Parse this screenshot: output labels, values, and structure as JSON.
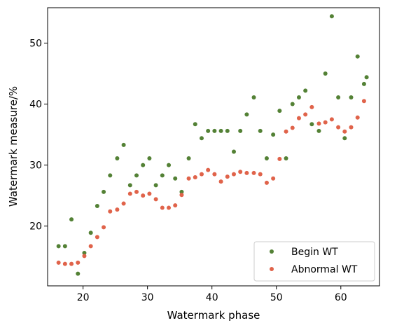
{
  "chart_data": {
    "type": "scatter",
    "xlabel": "Watermark phase",
    "ylabel": "Watermark measure/%",
    "xlim": [
      14.5,
      66
    ],
    "ylim": [
      10.2,
      55.8
    ],
    "xticks": [
      20,
      30,
      40,
      50,
      60
    ],
    "yticks": [
      20,
      30,
      40,
      50
    ],
    "grid": false,
    "legend_position": "lower-right",
    "series": [
      {
        "name": "Begin WT",
        "color": "#538135",
        "points": [
          [
            16.2,
            16.7
          ],
          [
            17.2,
            16.7
          ],
          [
            18.2,
            21.1
          ],
          [
            19.2,
            12.2
          ],
          [
            20.2,
            15.6
          ],
          [
            21.2,
            18.9
          ],
          [
            22.2,
            23.3
          ],
          [
            23.2,
            25.6
          ],
          [
            24.2,
            28.3
          ],
          [
            25.3,
            31.1
          ],
          [
            26.3,
            33.3
          ],
          [
            27.3,
            26.7
          ],
          [
            28.3,
            28.3
          ],
          [
            29.3,
            30.0
          ],
          [
            30.3,
            31.1
          ],
          [
            31.3,
            26.7
          ],
          [
            32.3,
            28.3
          ],
          [
            33.3,
            30.0
          ],
          [
            34.3,
            27.8
          ],
          [
            35.3,
            25.6
          ],
          [
            36.4,
            31.1
          ],
          [
            37.4,
            36.7
          ],
          [
            38.4,
            34.4
          ],
          [
            39.4,
            35.6
          ],
          [
            40.4,
            35.6
          ],
          [
            41.4,
            35.6
          ],
          [
            42.4,
            35.6
          ],
          [
            43.4,
            32.2
          ],
          [
            44.4,
            35.6
          ],
          [
            45.4,
            38.3
          ],
          [
            46.5,
            41.1
          ],
          [
            47.5,
            35.6
          ],
          [
            48.5,
            31.1
          ],
          [
            49.5,
            35.0
          ],
          [
            50.5,
            38.9
          ],
          [
            51.5,
            31.1
          ],
          [
            52.5,
            40.0
          ],
          [
            53.5,
            41.1
          ],
          [
            54.5,
            42.2
          ],
          [
            55.5,
            36.7
          ],
          [
            56.6,
            35.6
          ],
          [
            57.6,
            45.0
          ],
          [
            58.6,
            54.4
          ],
          [
            59.6,
            41.1
          ],
          [
            60.6,
            34.4
          ],
          [
            61.6,
            41.1
          ],
          [
            62.6,
            47.8
          ],
          [
            63.6,
            43.3
          ],
          [
            64.0,
            44.4
          ]
        ]
      },
      {
        "name": "Abnormal WT",
        "color": "#e0634a",
        "points": [
          [
            16.2,
            14.0
          ],
          [
            17.2,
            13.8
          ],
          [
            18.2,
            13.8
          ],
          [
            19.2,
            14.0
          ],
          [
            20.2,
            15.1
          ],
          [
            21.2,
            16.7
          ],
          [
            22.2,
            18.2
          ],
          [
            23.2,
            19.8
          ],
          [
            24.2,
            22.4
          ],
          [
            25.3,
            22.7
          ],
          [
            26.3,
            23.7
          ],
          [
            27.3,
            25.3
          ],
          [
            28.3,
            25.6
          ],
          [
            29.3,
            25.0
          ],
          [
            30.3,
            25.3
          ],
          [
            31.3,
            24.4
          ],
          [
            32.3,
            23.0
          ],
          [
            33.3,
            23.0
          ],
          [
            34.3,
            23.4
          ],
          [
            35.3,
            25.1
          ],
          [
            36.4,
            27.8
          ],
          [
            37.4,
            28.0
          ],
          [
            38.4,
            28.5
          ],
          [
            39.4,
            29.2
          ],
          [
            40.4,
            28.5
          ],
          [
            41.4,
            27.3
          ],
          [
            42.4,
            28.1
          ],
          [
            43.4,
            28.5
          ],
          [
            44.4,
            28.9
          ],
          [
            45.4,
            28.7
          ],
          [
            46.5,
            28.7
          ],
          [
            47.5,
            28.5
          ],
          [
            48.5,
            27.1
          ],
          [
            49.5,
            27.8
          ],
          [
            50.5,
            31.0
          ],
          [
            51.5,
            35.5
          ],
          [
            52.5,
            36.1
          ],
          [
            53.5,
            37.7
          ],
          [
            54.5,
            38.3
          ],
          [
            55.5,
            39.5
          ],
          [
            56.6,
            36.8
          ],
          [
            57.6,
            37.0
          ],
          [
            58.6,
            37.5
          ],
          [
            59.6,
            36.2
          ],
          [
            60.6,
            35.5
          ],
          [
            61.6,
            36.2
          ],
          [
            62.6,
            37.8
          ],
          [
            63.6,
            40.5
          ]
        ]
      }
    ]
  }
}
